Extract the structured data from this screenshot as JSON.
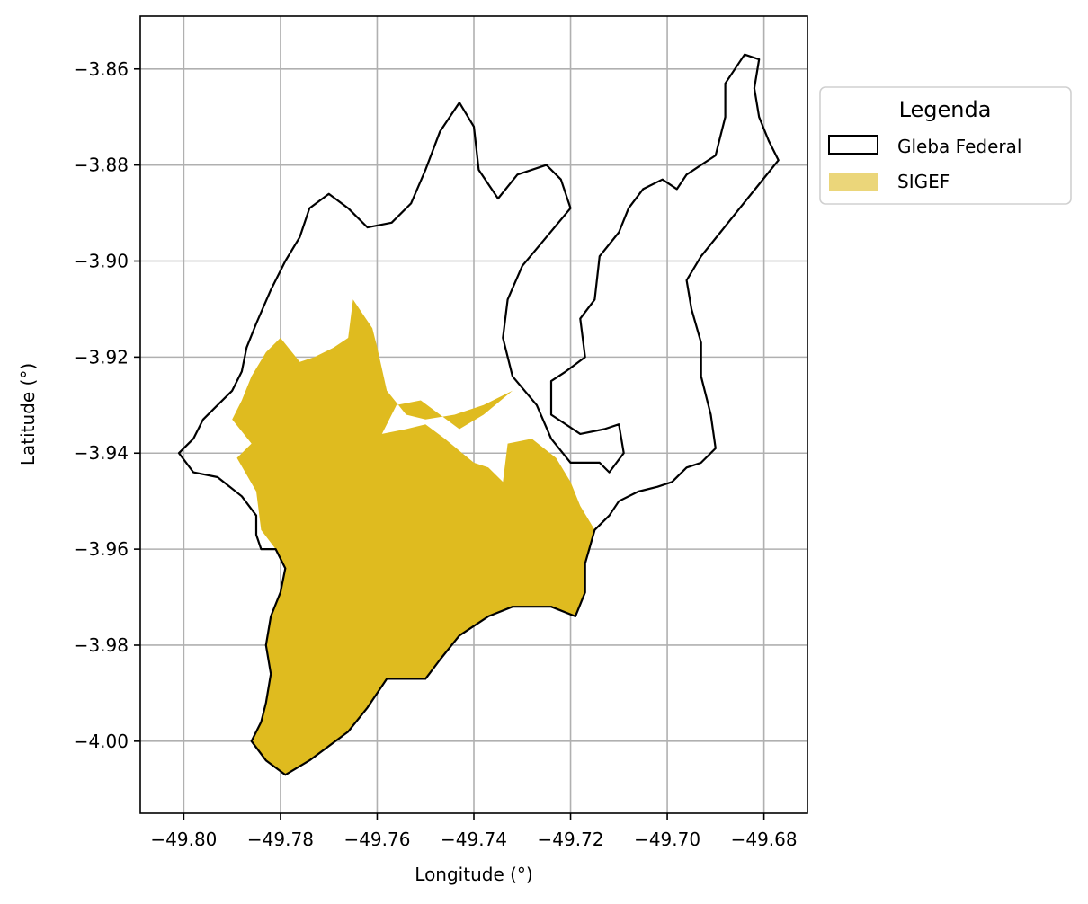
{
  "chart_data": {
    "type": "map",
    "xlabel": "Longitude (°)",
    "ylabel": "Latitude (°)",
    "xlim": [
      -49.809,
      -49.671
    ],
    "ylim": [
      -4.015,
      -3.849
    ],
    "grid": true,
    "x_ticks": [
      {
        "value": -49.8,
        "label": "−49.80"
      },
      {
        "value": -49.78,
        "label": "−49.78"
      },
      {
        "value": -49.76,
        "label": "−49.76"
      },
      {
        "value": -49.74,
        "label": "−49.74"
      },
      {
        "value": -49.72,
        "label": "−49.72"
      },
      {
        "value": -49.7,
        "label": "−49.70"
      },
      {
        "value": -49.68,
        "label": "−49.68"
      }
    ],
    "y_ticks": [
      {
        "value": -3.86,
        "label": "−3.86"
      },
      {
        "value": -3.88,
        "label": "−3.88"
      },
      {
        "value": -3.9,
        "label": "−3.90"
      },
      {
        "value": -3.92,
        "label": "−3.92"
      },
      {
        "value": -3.94,
        "label": "−3.94"
      },
      {
        "value": -3.96,
        "label": "−3.96"
      },
      {
        "value": -3.98,
        "label": "−3.98"
      },
      {
        "value": -4.0,
        "label": "−4.00"
      }
    ],
    "legend": {
      "title": "Legenda",
      "placement": "outside-upper-right",
      "entries": [
        {
          "label": "Gleba Federal",
          "style": "outline",
          "color": "#000000"
        },
        {
          "label": "SIGEF",
          "style": "fill",
          "color": "#ebd67a"
        }
      ]
    },
    "layers": [
      {
        "name": "Gleba Federal",
        "style": "outline",
        "stroke": "#000000",
        "fill": "none",
        "coordinates": [
          [
            -49.779,
            -4.007
          ],
          [
            -49.774,
            -4.004
          ],
          [
            -49.766,
            -3.998
          ],
          [
            -49.762,
            -3.993
          ],
          [
            -49.758,
            -3.987
          ],
          [
            -49.75,
            -3.987
          ],
          [
            -49.747,
            -3.983
          ],
          [
            -49.743,
            -3.978
          ],
          [
            -49.737,
            -3.974
          ],
          [
            -49.732,
            -3.972
          ],
          [
            -49.724,
            -3.972
          ],
          [
            -49.719,
            -3.974
          ],
          [
            -49.717,
            -3.969
          ],
          [
            -49.717,
            -3.963
          ],
          [
            -49.715,
            -3.956
          ],
          [
            -49.712,
            -3.953
          ],
          [
            -49.71,
            -3.95
          ],
          [
            -49.706,
            -3.948
          ],
          [
            -49.702,
            -3.947
          ],
          [
            -49.699,
            -3.946
          ],
          [
            -49.696,
            -3.943
          ],
          [
            -49.693,
            -3.942
          ],
          [
            -49.69,
            -3.939
          ],
          [
            -49.691,
            -3.932
          ],
          [
            -49.693,
            -3.924
          ],
          [
            -49.693,
            -3.917
          ],
          [
            -49.695,
            -3.91
          ],
          [
            -49.696,
            -3.904
          ],
          [
            -49.693,
            -3.899
          ],
          [
            -49.689,
            -3.894
          ],
          [
            -49.685,
            -3.889
          ],
          [
            -49.681,
            -3.884
          ],
          [
            -49.677,
            -3.879
          ],
          [
            -49.679,
            -3.875
          ],
          [
            -49.681,
            -3.87
          ],
          [
            -49.682,
            -3.864
          ],
          [
            -49.681,
            -3.858
          ],
          [
            -49.684,
            -3.857
          ],
          [
            -49.688,
            -3.863
          ],
          [
            -49.688,
            -3.87
          ],
          [
            -49.69,
            -3.878
          ],
          [
            -49.693,
            -3.88
          ],
          [
            -49.696,
            -3.882
          ],
          [
            -49.698,
            -3.885
          ],
          [
            -49.701,
            -3.883
          ],
          [
            -49.705,
            -3.885
          ],
          [
            -49.708,
            -3.889
          ],
          [
            -49.71,
            -3.894
          ],
          [
            -49.714,
            -3.899
          ],
          [
            -49.715,
            -3.908
          ],
          [
            -49.718,
            -3.912
          ],
          [
            -49.717,
            -3.92
          ],
          [
            -49.721,
            -3.923
          ],
          [
            -49.724,
            -3.925
          ],
          [
            -49.724,
            -3.932
          ],
          [
            -49.718,
            -3.936
          ],
          [
            -49.713,
            -3.935
          ],
          [
            -49.71,
            -3.934
          ],
          [
            -49.709,
            -3.94
          ],
          [
            -49.712,
            -3.944
          ],
          [
            -49.714,
            -3.942
          ],
          [
            -49.72,
            -3.942
          ],
          [
            -49.724,
            -3.937
          ],
          [
            -49.727,
            -3.93
          ],
          [
            -49.732,
            -3.924
          ],
          [
            -49.734,
            -3.916
          ],
          [
            -49.733,
            -3.908
          ],
          [
            -49.73,
            -3.901
          ],
          [
            -49.725,
            -3.895
          ],
          [
            -49.72,
            -3.889
          ],
          [
            -49.722,
            -3.883
          ],
          [
            -49.725,
            -3.88
          ],
          [
            -49.731,
            -3.882
          ],
          [
            -49.735,
            -3.887
          ],
          [
            -49.739,
            -3.881
          ],
          [
            -49.74,
            -3.872
          ],
          [
            -49.743,
            -3.867
          ],
          [
            -49.747,
            -3.873
          ],
          [
            -49.75,
            -3.881
          ],
          [
            -49.753,
            -3.888
          ],
          [
            -49.757,
            -3.892
          ],
          [
            -49.762,
            -3.893
          ],
          [
            -49.766,
            -3.889
          ],
          [
            -49.77,
            -3.886
          ],
          [
            -49.774,
            -3.889
          ],
          [
            -49.776,
            -3.895
          ],
          [
            -49.779,
            -3.9
          ],
          [
            -49.782,
            -3.906
          ],
          [
            -49.785,
            -3.913
          ],
          [
            -49.787,
            -3.918
          ],
          [
            -49.788,
            -3.923
          ],
          [
            -49.79,
            -3.927
          ],
          [
            -49.793,
            -3.93
          ],
          [
            -49.796,
            -3.933
          ],
          [
            -49.798,
            -3.937
          ],
          [
            -49.801,
            -3.94
          ],
          [
            -49.798,
            -3.944
          ],
          [
            -49.793,
            -3.945
          ],
          [
            -49.788,
            -3.949
          ],
          [
            -49.785,
            -3.953
          ],
          [
            -49.785,
            -3.957
          ],
          [
            -49.784,
            -3.96
          ],
          [
            -49.781,
            -3.96
          ],
          [
            -49.779,
            -3.964
          ],
          [
            -49.78,
            -3.969
          ],
          [
            -49.782,
            -3.974
          ],
          [
            -49.783,
            -3.98
          ],
          [
            -49.782,
            -3.986
          ],
          [
            -49.783,
            -3.992
          ],
          [
            -49.784,
            -3.996
          ],
          [
            -49.786,
            -4.0
          ],
          [
            -49.783,
            -4.004
          ],
          [
            -49.779,
            -4.007
          ]
        ]
      },
      {
        "name": "SIGEF",
        "style": "fill",
        "fill": "#dfbb1f",
        "stroke": "none",
        "coordinates": [
          [
            -49.779,
            -4.007
          ],
          [
            -49.774,
            -4.004
          ],
          [
            -49.766,
            -3.998
          ],
          [
            -49.762,
            -3.993
          ],
          [
            -49.758,
            -3.987
          ],
          [
            -49.75,
            -3.987
          ],
          [
            -49.747,
            -3.983
          ],
          [
            -49.743,
            -3.978
          ],
          [
            -49.737,
            -3.974
          ],
          [
            -49.732,
            -3.972
          ],
          [
            -49.724,
            -3.972
          ],
          [
            -49.719,
            -3.974
          ],
          [
            -49.717,
            -3.969
          ],
          [
            -49.717,
            -3.963
          ],
          [
            -49.715,
            -3.956
          ],
          [
            -49.718,
            -3.951
          ],
          [
            -49.72,
            -3.946
          ],
          [
            -49.723,
            -3.941
          ],
          [
            -49.728,
            -3.937
          ],
          [
            -49.733,
            -3.938
          ],
          [
            -49.734,
            -3.946
          ],
          [
            -49.737,
            -3.943
          ],
          [
            -49.74,
            -3.942
          ],
          [
            -49.746,
            -3.937
          ],
          [
            -49.75,
            -3.934
          ],
          [
            -49.754,
            -3.935
          ],
          [
            -49.759,
            -3.936
          ],
          [
            -49.756,
            -3.93
          ],
          [
            -49.751,
            -3.929
          ],
          [
            -49.747,
            -3.932
          ],
          [
            -49.743,
            -3.935
          ],
          [
            -49.738,
            -3.932
          ],
          [
            -49.732,
            -3.927
          ],
          [
            -49.738,
            -3.93
          ],
          [
            -49.744,
            -3.932
          ],
          [
            -49.75,
            -3.933
          ],
          [
            -49.754,
            -3.932
          ],
          [
            -49.758,
            -3.927
          ],
          [
            -49.76,
            -3.918
          ],
          [
            -49.761,
            -3.914
          ],
          [
            -49.763,
            -3.911
          ],
          [
            -49.765,
            -3.908
          ],
          [
            -49.766,
            -3.916
          ],
          [
            -49.769,
            -3.918
          ],
          [
            -49.773,
            -3.92
          ],
          [
            -49.776,
            -3.921
          ],
          [
            -49.78,
            -3.916
          ],
          [
            -49.783,
            -3.919
          ],
          [
            -49.786,
            -3.924
          ],
          [
            -49.788,
            -3.929
          ],
          [
            -49.79,
            -3.933
          ],
          [
            -49.786,
            -3.938
          ],
          [
            -49.789,
            -3.941
          ],
          [
            -49.785,
            -3.948
          ],
          [
            -49.784,
            -3.956
          ],
          [
            -49.781,
            -3.96
          ],
          [
            -49.779,
            -3.964
          ],
          [
            -49.78,
            -3.969
          ],
          [
            -49.782,
            -3.974
          ],
          [
            -49.783,
            -3.98
          ],
          [
            -49.782,
            -3.986
          ],
          [
            -49.783,
            -3.992
          ],
          [
            -49.784,
            -3.996
          ],
          [
            -49.786,
            -4.0
          ],
          [
            -49.783,
            -4.004
          ],
          [
            -49.779,
            -4.007
          ]
        ]
      }
    ]
  }
}
